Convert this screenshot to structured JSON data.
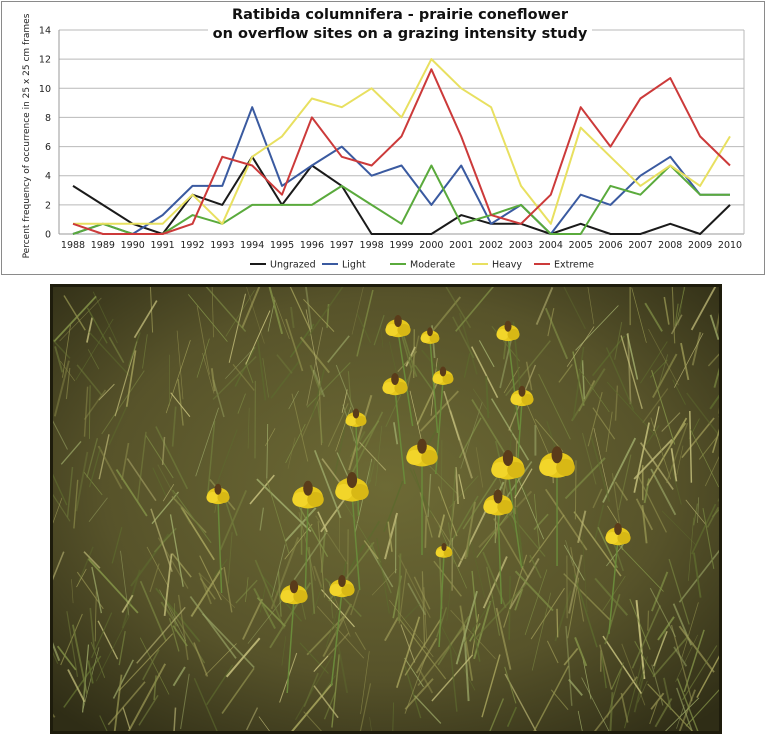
{
  "chart_data": {
    "type": "line",
    "title_line1": "Ratibida columnifera  -  prairie coneflower",
    "title_line2": "on overflow sites on a grazing intensity study",
    "ylabel": "Percent frequency of occurrence in 25 x 25 cm frames",
    "xlabel": "",
    "ylim": [
      0,
      14
    ],
    "yticks": [
      0,
      2,
      4,
      6,
      8,
      10,
      12,
      14
    ],
    "grid": "horizontal",
    "legend_position": "bottom",
    "categories": [
      "1988",
      "1989",
      "1990",
      "1991",
      "1992",
      "1993",
      "1994",
      "1995",
      "1996",
      "1997",
      "1998",
      "1999",
      "2000",
      "2001",
      "2002",
      "2003",
      "2004",
      "2005",
      "2006",
      "2007",
      "2008",
      "2009",
      "2010"
    ],
    "series": [
      {
        "name": "Ungrazed",
        "color": "#1a1a1a",
        "values": [
          3.3,
          2.0,
          0.7,
          0.0,
          2.7,
          2.0,
          5.3,
          2.0,
          4.7,
          3.3,
          0.0,
          0.0,
          0.0,
          1.3,
          0.7,
          0.7,
          0.0,
          0.7,
          0.0,
          0.0,
          0.7,
          0.0,
          2.0
        ]
      },
      {
        "name": "Light",
        "color": "#3a5aa0",
        "values": [
          0.0,
          0.7,
          0.0,
          1.3,
          3.3,
          3.3,
          8.7,
          3.3,
          4.7,
          6.0,
          4.0,
          4.7,
          2.0,
          4.7,
          0.7,
          2.0,
          0.0,
          2.7,
          2.0,
          4.0,
          5.3,
          2.7,
          2.7
        ]
      },
      {
        "name": "Moderate",
        "color": "#5aaa3c",
        "values": [
          0.0,
          0.7,
          0.0,
          0.0,
          1.3,
          0.7,
          2.0,
          2.0,
          2.0,
          3.3,
          2.0,
          0.7,
          4.7,
          0.7,
          1.3,
          2.0,
          0.0,
          0.0,
          3.3,
          2.7,
          4.7,
          2.7,
          2.7
        ]
      },
      {
        "name": "Heavy",
        "color": "#e8e060",
        "values": [
          0.7,
          0.7,
          0.7,
          0.7,
          2.7,
          0.7,
          5.3,
          6.7,
          9.3,
          8.7,
          10.0,
          8.0,
          12.0,
          10.0,
          8.7,
          3.3,
          0.7,
          7.3,
          5.3,
          3.3,
          4.7,
          3.3,
          6.7
        ]
      },
      {
        "name": "Extreme",
        "color": "#cc3a3a",
        "values": [
          0.7,
          0.0,
          0.0,
          0.0,
          0.7,
          5.3,
          4.7,
          2.7,
          8.0,
          5.3,
          4.7,
          6.7,
          11.3,
          6.7,
          1.3,
          0.7,
          2.7,
          8.7,
          6.0,
          9.3,
          10.7,
          6.7,
          4.7
        ]
      }
    ]
  },
  "photo": {
    "icon": "prairie-coneflower-photo"
  }
}
